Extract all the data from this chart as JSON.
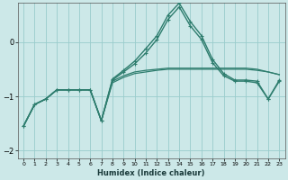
{
  "xlabel": "Humidex (Indice chaleur)",
  "background_color": "#cce8e8",
  "grid_color": "#99cccc",
  "line_color": "#2e7d6e",
  "x_values": [
    0,
    1,
    2,
    3,
    4,
    5,
    6,
    7,
    8,
    9,
    10,
    11,
    12,
    13,
    14,
    15,
    16,
    17,
    18,
    19,
    20,
    21,
    22,
    23
  ],
  "series": [
    {
      "y": [
        -1.55,
        -1.15,
        -1.05,
        -0.88,
        -0.88,
        -0.88,
        -0.88,
        -1.45,
        -0.75,
        -0.65,
        -0.58,
        -0.55,
        -0.52,
        -0.5,
        -0.5,
        -0.5,
        -0.5,
        -0.5,
        -0.5,
        -0.5,
        -0.5,
        -0.52,
        -0.55,
        -0.6
      ],
      "marker": false,
      "lw": 0.9
    },
    {
      "y": [
        -1.55,
        -1.15,
        -1.05,
        -0.88,
        -0.88,
        -0.88,
        -0.88,
        -1.45,
        -0.72,
        -0.62,
        -0.55,
        -0.52,
        -0.5,
        -0.48,
        -0.48,
        -0.48,
        -0.48,
        -0.48,
        -0.48,
        -0.48,
        -0.48,
        -0.5,
        -0.55,
        -0.6
      ],
      "marker": false,
      "lw": 0.9
    },
    {
      "y": [
        -1.55,
        -1.15,
        -1.05,
        -0.88,
        -0.88,
        -0.88,
        -0.88,
        -1.45,
        -0.7,
        -0.55,
        -0.4,
        -0.2,
        0.05,
        0.42,
        0.65,
        0.3,
        0.05,
        -0.38,
        -0.62,
        -0.72,
        -0.72,
        -0.75,
        -1.05,
        -0.72
      ],
      "marker": true,
      "lw": 1.0
    },
    {
      "y": [
        -1.55,
        -1.15,
        -1.05,
        -0.88,
        -0.88,
        -0.88,
        -0.88,
        -1.45,
        -0.68,
        -0.52,
        -0.35,
        -0.12,
        0.12,
        0.5,
        0.72,
        0.38,
        0.12,
        -0.32,
        -0.58,
        -0.7,
        -0.7,
        -0.72,
        -1.05,
        -0.7
      ],
      "marker": true,
      "lw": 1.0
    }
  ],
  "ylim": [
    -2.15,
    0.72
  ],
  "yticks": [
    -2,
    -1,
    0
  ],
  "xlim": [
    -0.5,
    23.5
  ]
}
